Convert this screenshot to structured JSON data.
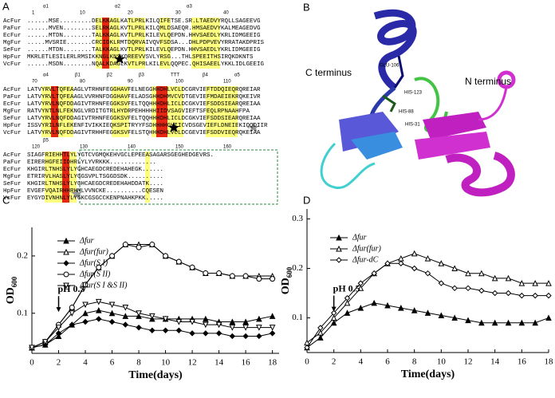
{
  "panel_a": {
    "label": "A",
    "blocks": [
      {
        "structure": [
          "α1",
          "α2",
          "α3"
        ],
        "ruler": [
          "1",
          "10",
          "20",
          "30",
          "40"
        ],
        "rows": [
          {
            "name": "AcFur",
            "seq": "......MSE.........DELKKAGLKATLPRLKILQIFETSE.SR.LTAEDVYRQLLSAGEEVG"
          },
          {
            "name": "PaFur",
            "seq": "......MVEN........SELRKAGLKVTLPRLKILQMLDSAEQR.HMSAEDVYKALMEAGEDVG"
          },
          {
            "name": "EcFur",
            "seq": "......MTDN........TALKKAGLKVTLPRLKILEVLQEPDN.HHVSAEDLYKRLIDMGEEIG"
          },
          {
            "name": "MgFur",
            "seq": ".....MVSRIE.......CRCIDKLRMTDQRVAIVQVFSDSA...DHLPDPVEVYRRATAKDPRIS"
          },
          {
            "name": "SeFur",
            "seq": "......MTDN........TALKKAGLKVTLPRLKILEVLQEPDN.HHVSAEDLYKRLIDMGEEIG"
          },
          {
            "name": "HpFur",
            "seq": "MKRLETLESILERLRMSIKKNGLKNSKQREEVVSVLYRSG...THLSPEEITHSIRQKDKNTS"
          },
          {
            "name": "VcFur",
            "seq": "......MSDN........NQALKDAGLKVTLPRLKILEVLQQPEC.QHISAEELYKKLIDLGEEIG"
          }
        ]
      },
      {
        "structure": [
          "α4",
          "β1",
          "β2",
          "β3",
          "TTT",
          "β4",
          "α5"
        ],
        "ruler": [
          "70",
          "80",
          "90",
          "100",
          "110"
        ],
        "rows": [
          {
            "name": "AcFur",
            "seq": "LATVYRVLTQFEAAGLVTRHNFEGGHAVFELNEGGHHDHLVCLDCGRVIEFTDDQIEQRQREIAR"
          },
          {
            "name": "PaFur",
            "seq": "LATVYRVLTQFEAAGLVVRHNFDGGHAVFELADSGHHDHMVCVDTGEVIEFMDAEIEKRQKEIVR"
          },
          {
            "name": "EcFur",
            "seq": "LATVYRVLNQFDDAGIVTRHNFEGGKSVFELTQQHHHDHLICLDCGKVIEFSDDSIEARQREIAA"
          },
          {
            "name": "MgFur",
            "seq": "RATVYNTLNLFEKNGLVRDITGTRLHYDRPEHHHHHIIDVSAGVIEFTSFEQLRPNAAHFPA"
          },
          {
            "name": "SeFur",
            "seq": "LATVYRVLNQFDDAGIVTRHNFEGGKSVFELTQQHHHDHLICLDCGKVIEFSDDSIEARQREIAA"
          },
          {
            "name": "HpFur",
            "seq": "ISSVYRILNFLEKENFIVIKKIEQKSPITRYYFSDHHHHGHIICVDSGEVIEFLDNEIEKIQQDIIR"
          },
          {
            "name": "VcFur",
            "seq": "LATVYRVLNQFDDAGIVTRHHFEGGKSVFELSTQHHHDHLVCLDCGEVIEFSDDVIEQRQKEIAA"
          }
        ]
      },
      {
        "structure": [
          "β5"
        ],
        "ruler": [
          "120",
          "130",
          "140",
          "150",
          "160"
        ],
        "rows": [
          {
            "name": "AcFur",
            "seq": "SIAGFRIEHHTLYLYGTCVGMQKEHVGCLEPEEASAGARSGEGHEDGEVRS."
          },
          {
            "name": "PaFur",
            "seq": "EIRERHGFEIIDHRLYLYVRKKK............."
          },
          {
            "name": "EcFur",
            "seq": "KHGIRLTNHSLYLYGHCAEGDCREDEHAHEGK......"
          },
          {
            "name": "MgFur",
            "seq": "ETRIRVLHASLYLYGGSVPLTSGGDSDK.........."
          },
          {
            "name": "SeFur",
            "seq": "KHGIRLTNHSLYLYGHCAEGDCREDEHAHDDATK...."
          },
          {
            "name": "HpFur",
            "seq": "EVGEFVQAIRHHRHMLVVNCKE..........CQESEN"
          },
          {
            "name": "VcFur",
            "seq": "EYGYDIVNHNLYLYGKCGSGCCKENPNAHKPKK....."
          }
        ]
      }
    ]
  },
  "panel_b": {
    "label": "B",
    "residues": [
      "GLU-106",
      "HIS-123",
      "HIS-88",
      "HIS-31"
    ],
    "c_terminus": "C terminus",
    "n_terminus": "N terminus"
  },
  "chart_data": [
    {
      "type": "line",
      "label": "C",
      "x_label": "Time(days)",
      "y_label": "OD",
      "y_label_sub": "600",
      "x": [
        0,
        1,
        2,
        3,
        4,
        5,
        6,
        7,
        8,
        9,
        10,
        11,
        12,
        13,
        14,
        15,
        16,
        17,
        18
      ],
      "xlim": [
        0,
        18.5
      ],
      "xticks": [
        0,
        2,
        4,
        6,
        8,
        10,
        12,
        14,
        16,
        18
      ],
      "ylim": [
        0.03,
        0.25
      ],
      "yticks": [
        0.1,
        0.2
      ],
      "annotation": {
        "text": "pH 0.5",
        "x": 2
      },
      "legend": "upper-left",
      "series": [
        {
          "name": "Δfur",
          "marker": "filled-triangle",
          "color": "#000000",
          "values": [
            0.04,
            0.045,
            0.06,
            0.08,
            0.1,
            0.105,
            0.1,
            0.095,
            0.095,
            0.09,
            0.09,
            0.09,
            0.09,
            0.09,
            0.085,
            0.085,
            0.085,
            0.09,
            0.095
          ]
        },
        {
          "name": "Δfur(fur)",
          "marker": "open-triangle",
          "color": "#000000",
          "values": [
            0.04,
            0.05,
            0.08,
            0.11,
            0.15,
            0.18,
            0.2,
            0.22,
            0.22,
            0.22,
            0.2,
            0.19,
            0.18,
            0.17,
            0.17,
            0.165,
            0.165,
            0.165,
            0.165
          ]
        },
        {
          "name": "Δfur(S I)",
          "marker": "filled-diamond",
          "color": "#000000",
          "values": [
            0.04,
            0.045,
            0.065,
            0.08,
            0.085,
            0.09,
            0.085,
            0.08,
            0.075,
            0.07,
            0.07,
            0.07,
            0.065,
            0.065,
            0.065,
            0.06,
            0.06,
            0.06,
            0.065
          ]
        },
        {
          "name": "Δfur(S II)",
          "marker": "open-circle",
          "color": "#000000",
          "values": [
            0.04,
            0.05,
            0.08,
            0.11,
            0.15,
            0.18,
            0.2,
            0.22,
            0.215,
            0.22,
            0.2,
            0.19,
            0.18,
            0.17,
            0.17,
            0.165,
            0.165,
            0.16,
            0.16
          ]
        },
        {
          "name": "Δfur(S I &S II)",
          "marker": "open-down-triangle",
          "color": "#000000",
          "values": [
            0.04,
            0.05,
            0.075,
            0.1,
            0.115,
            0.12,
            0.115,
            0.11,
            0.1,
            0.095,
            0.09,
            0.085,
            0.085,
            0.08,
            0.08,
            0.075,
            0.075,
            0.075,
            0.075
          ]
        }
      ]
    },
    {
      "type": "line",
      "label": "D",
      "x_label": "Time(days)",
      "y_label": "OD",
      "y_label_sub": "600",
      "x": [
        0,
        1,
        2,
        3,
        4,
        5,
        6,
        7,
        8,
        9,
        10,
        11,
        12,
        13,
        14,
        15,
        16,
        17,
        18
      ],
      "xlim": [
        0,
        18
      ],
      "xticks": [
        0,
        2,
        4,
        6,
        8,
        10,
        12,
        14,
        16,
        18
      ],
      "ylim": [
        0.03,
        0.32
      ],
      "yticks": [
        0.1,
        0.2,
        0.3
      ],
      "annotation": {
        "text": "pH 0.5",
        "x": 2
      },
      "legend": "upper-left",
      "series": [
        {
          "name": "Δfur",
          "marker": "filled-triangle",
          "color": "#000000",
          "values": [
            0.04,
            0.06,
            0.09,
            0.11,
            0.12,
            0.13,
            0.125,
            0.12,
            0.115,
            0.11,
            0.105,
            0.1,
            0.095,
            0.09,
            0.09,
            0.09,
            0.09,
            0.09,
            0.1
          ]
        },
        {
          "name": "Δfur(fur)",
          "marker": "open-triangle",
          "color": "#000000",
          "values": [
            0.05,
            0.07,
            0.1,
            0.13,
            0.16,
            0.19,
            0.21,
            0.22,
            0.23,
            0.22,
            0.21,
            0.2,
            0.19,
            0.19,
            0.18,
            0.18,
            0.17,
            0.17,
            0.17
          ]
        },
        {
          "name": "Δfur-dC",
          "marker": "open-diamond",
          "color": "#000000",
          "values": [
            0.04,
            0.08,
            0.11,
            0.14,
            0.17,
            0.19,
            0.21,
            0.21,
            0.2,
            0.19,
            0.17,
            0.16,
            0.16,
            0.155,
            0.15,
            0.15,
            0.145,
            0.145,
            0.145
          ]
        }
      ]
    }
  ]
}
